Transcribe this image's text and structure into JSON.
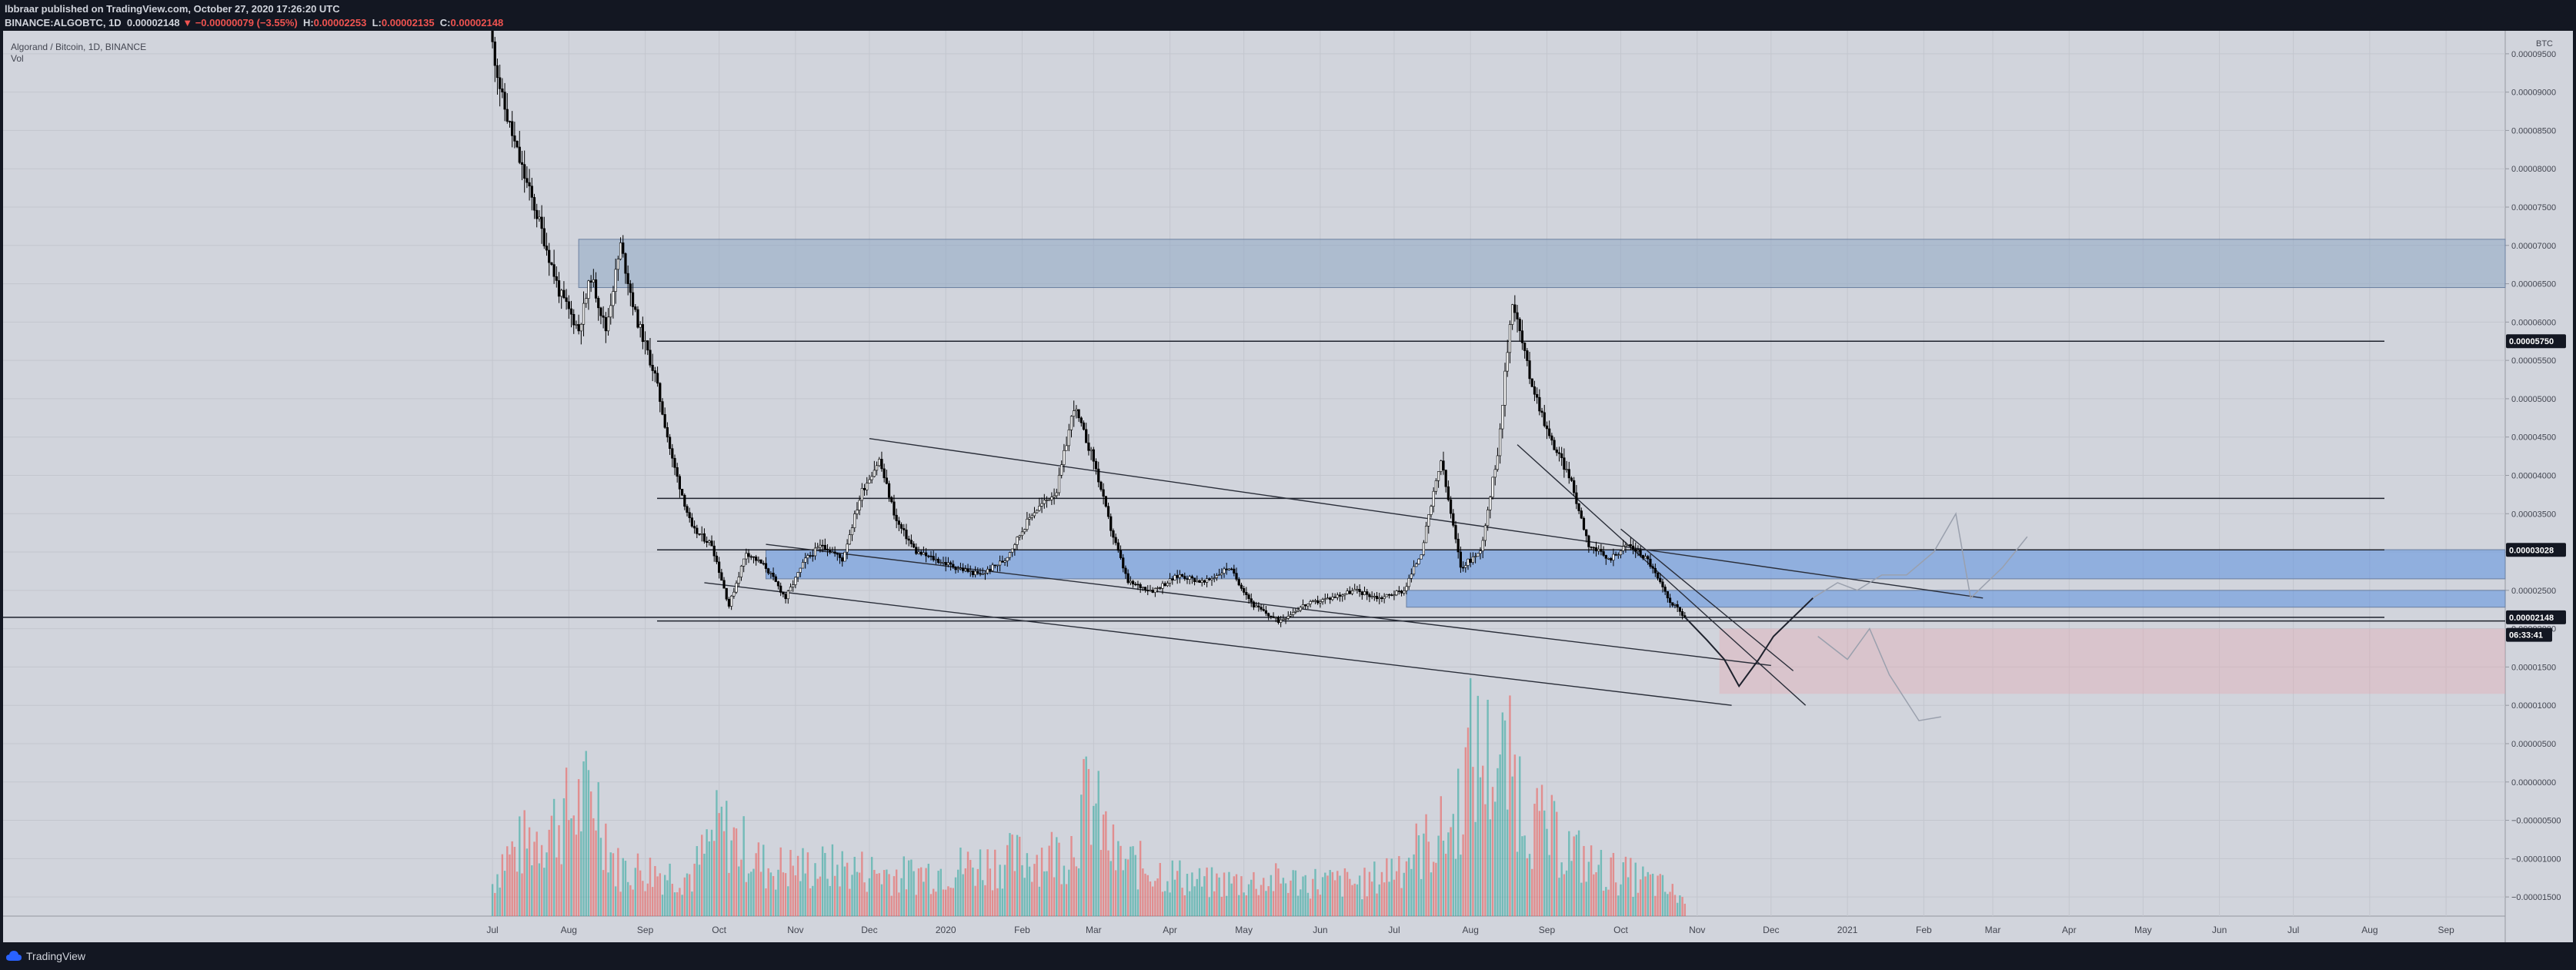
{
  "header": {
    "line1": "lbbraar published on TradingView.com, October 27, 2020 17:26:20 UTC",
    "symbol": "BINANCE:ALGOBTC, 1D",
    "last": "0.00002148",
    "change": "−0.00000079 (−3.55%)",
    "h_label": "H:",
    "h": "0.00002253",
    "l_label": "L:",
    "l": "0.00002135",
    "c_label": "C:",
    "c": "0.00002148"
  },
  "legend": {
    "title": "Algorand / Bitcoin, 1D, BINANCE",
    "vol": "Vol"
  },
  "footer": {
    "brand": "TradingView"
  },
  "colors": {
    "background": "#d1d4dc",
    "zone_blue": "#5b8fe0",
    "zone_grey_blue": "#8fa8c4",
    "zone_pink": "#e8a7b0",
    "vol_up": "#26a69a",
    "vol_down": "#ef5350"
  },
  "chart_data": {
    "type": "candlestick",
    "currency": "BTC",
    "x_ticks": [
      "Jul",
      "Aug",
      "Sep",
      "Oct",
      "Nov",
      "Dec",
      "2020",
      "Feb",
      "Mar",
      "Apr",
      "May",
      "Jun",
      "Jul",
      "Aug",
      "Sep",
      "Oct",
      "Nov",
      "Dec",
      "2021",
      "Feb",
      "Mar",
      "Apr",
      "May",
      "Jun",
      "Jul",
      "Aug",
      "Sep"
    ],
    "y_ticks": [
      "0.00009500",
      "0.00009000",
      "0.00008500",
      "0.00008000",
      "0.00007500",
      "0.00007000",
      "0.00006500",
      "0.00006000",
      "0.00005500",
      "0.00005000",
      "0.00004500",
      "0.00004000",
      "0.00003500",
      "0.00003000",
      "0.00002500",
      "0.00002000",
      "0.00001500",
      "0.00001000",
      "0.00000500",
      "0.00000000",
      "−0.00000500",
      "−0.00001000",
      "−0.00001500"
    ],
    "ylim": [
      -1.75e-05,
      9.8e-05
    ],
    "price_labels": [
      {
        "value": "0.00005750",
        "y": 5.75e-05
      },
      {
        "value": "0.00003028",
        "y": 3.028e-05
      },
      {
        "value": "0.00002148",
        "y": 2.148e-05
      },
      {
        "value": "06:33:41",
        "y": 1.92e-05
      }
    ],
    "horizontal_lines": [
      5.75e-05,
      3.7e-05,
      3.028e-05,
      2.148e-05,
      2.1e-05
    ],
    "zones": [
      {
        "kind": "grey",
        "from": "2019-08-05",
        "to": "end",
        "low": 6.45e-05,
        "high": 7.08e-05
      },
      {
        "kind": "blue",
        "from": "2019-10-20",
        "to": "end",
        "low": 2.65e-05,
        "high": 3.03e-05
      },
      {
        "kind": "blue",
        "from": "2020-07-06",
        "to": "end",
        "low": 2.28e-05,
        "high": 2.5e-05
      },
      {
        "kind": "pink",
        "from": "2020-11-10",
        "to": "end",
        "low": 1.15e-05,
        "high": 2e-05
      }
    ],
    "trend_lines": [
      {
        "from": [
          "2019-12-01",
          4.48e-05
        ],
        "to": [
          "2021-02-25",
          2.4e-05
        ]
      },
      {
        "from": [
          "2019-10-20",
          3.1e-05
        ],
        "to": [
          "2020-12-01",
          1.52e-05
        ]
      },
      {
        "from": [
          "2019-09-25",
          2.6e-05
        ],
        "to": [
          "2020-11-15",
          1e-05
        ]
      },
      {
        "from": [
          "2020-08-20",
          4.4e-05
        ],
        "to": [
          "2020-12-15",
          1e-05
        ]
      },
      {
        "from": [
          "2020-10-01",
          3.3e-05
        ],
        "to": [
          "2020-12-10",
          1.45e-05
        ]
      }
    ],
    "price_path": [
      [
        "2019-06-30",
        9.8e-05
      ],
      [
        "2019-07-05",
        8.9e-05
      ],
      [
        "2019-07-12",
        8.1e-05
      ],
      [
        "2019-07-20",
        7.3e-05
      ],
      [
        "2019-07-28",
        6.4e-05
      ],
      [
        "2019-08-05",
        5.9e-05
      ],
      [
        "2019-08-10",
        6.6e-05
      ],
      [
        "2019-08-16",
        5.9e-05
      ],
      [
        "2019-08-22",
        7e-05
      ],
      [
        "2019-08-28",
        6.1e-05
      ],
      [
        "2019-09-05",
        5.3e-05
      ],
      [
        "2019-09-12",
        4.2e-05
      ],
      [
        "2019-09-20",
        3.3e-05
      ],
      [
        "2019-09-28",
        3.1e-05
      ],
      [
        "2019-10-05",
        2.3e-05
      ],
      [
        "2019-10-12",
        3e-05
      ],
      [
        "2019-10-20",
        2.8e-05
      ],
      [
        "2019-10-28",
        2.4e-05
      ],
      [
        "2019-11-05",
        2.9e-05
      ],
      [
        "2019-11-12",
        3.1e-05
      ],
      [
        "2019-11-20",
        2.9e-05
      ],
      [
        "2019-11-28",
        3.8e-05
      ],
      [
        "2019-12-05",
        4.2e-05
      ],
      [
        "2019-12-12",
        3.4e-05
      ],
      [
        "2019-12-20",
        3e-05
      ],
      [
        "2019-12-28",
        2.9e-05
      ],
      [
        "2020-01-05",
        2.8e-05
      ],
      [
        "2020-01-15",
        2.7e-05
      ],
      [
        "2020-01-25",
        2.9e-05
      ],
      [
        "2020-02-05",
        3.5e-05
      ],
      [
        "2020-02-15",
        3.8e-05
      ],
      [
        "2020-02-22",
        4.9e-05
      ],
      [
        "2020-03-01",
        4.2e-05
      ],
      [
        "2020-03-08",
        3.3e-05
      ],
      [
        "2020-03-15",
        2.6e-05
      ],
      [
        "2020-03-25",
        2.5e-05
      ],
      [
        "2020-04-05",
        2.7e-05
      ],
      [
        "2020-04-15",
        2.6e-05
      ],
      [
        "2020-04-25",
        2.8e-05
      ],
      [
        "2020-05-05",
        2.3e-05
      ],
      [
        "2020-05-15",
        2.1e-05
      ],
      [
        "2020-05-25",
        2.3e-05
      ],
      [
        "2020-06-05",
        2.4e-05
      ],
      [
        "2020-06-15",
        2.5e-05
      ],
      [
        "2020-06-25",
        2.4e-05
      ],
      [
        "2020-07-05",
        2.5e-05
      ],
      [
        "2020-07-12",
        3e-05
      ],
      [
        "2020-07-20",
        4.2e-05
      ],
      [
        "2020-07-28",
        2.8e-05
      ],
      [
        "2020-08-05",
        3e-05
      ],
      [
        "2020-08-12",
        4.3e-05
      ],
      [
        "2020-08-18",
        6.3e-05
      ],
      [
        "2020-08-25",
        5.3e-05
      ],
      [
        "2020-09-02",
        4.5e-05
      ],
      [
        "2020-09-10",
        4e-05
      ],
      [
        "2020-09-18",
        3.1e-05
      ],
      [
        "2020-09-26",
        2.9e-05
      ],
      [
        "2020-10-04",
        3.1e-05
      ],
      [
        "2020-10-12",
        2.9e-05
      ],
      [
        "2020-10-20",
        2.4e-05
      ],
      [
        "2020-10-27",
        2.15e-05
      ]
    ],
    "projection_dark": [
      [
        "2020-10-27",
        2.15e-05
      ],
      [
        "2020-11-05",
        1.85e-05
      ],
      [
        "2020-11-12",
        1.6e-05
      ],
      [
        "2020-11-18",
        1.25e-05
      ],
      [
        "2020-11-26",
        1.6e-05
      ],
      [
        "2020-12-02",
        1.9e-05
      ],
      [
        "2020-12-10",
        2.15e-05
      ],
      [
        "2020-12-18",
        2.4e-05
      ]
    ],
    "projection_light": [
      [
        "2020-12-18",
        2.4e-05
      ],
      [
        "2020-12-28",
        2.6e-05
      ],
      [
        "2021-01-05",
        2.5e-05
      ],
      [
        "2021-01-15",
        2.7e-05
      ],
      [
        "2021-01-25",
        2.7e-05
      ],
      [
        "2021-02-05",
        3e-05
      ],
      [
        "2021-02-14",
        3.5e-05
      ],
      [
        "2021-02-20",
        2.4e-05
      ],
      [
        "2021-03-05",
        2.8e-05
      ],
      [
        "2021-03-15",
        3.2e-05
      ]
    ],
    "projection_light2": [
      [
        "2020-12-20",
        1.9e-05
      ],
      [
        "2021-01-01",
        1.6e-05
      ],
      [
        "2021-01-10",
        2e-05
      ],
      [
        "2021-01-18",
        1.4e-05
      ],
      [
        "2021-01-30",
        8e-06
      ],
      [
        "2021-02-08",
        8.5e-06
      ]
    ],
    "volume_path": [
      [
        "2019-07-01",
        0.2
      ],
      [
        "2019-07-05",
        0.35
      ],
      [
        "2019-08-12",
        0.75
      ],
      [
        "2019-08-20",
        0.3
      ],
      [
        "2019-09-20",
        0.25
      ],
      [
        "2019-10-01",
        0.55
      ],
      [
        "2019-10-20",
        0.3
      ],
      [
        "2019-11-20",
        0.3
      ],
      [
        "2019-12-15",
        0.25
      ],
      [
        "2020-02-20",
        0.4
      ],
      [
        "2020-02-28",
        0.75
      ],
      [
        "2020-03-10",
        0.35
      ],
      [
        "2020-04-15",
        0.2
      ],
      [
        "2020-05-15",
        0.22
      ],
      [
        "2020-06-20",
        0.2
      ],
      [
        "2020-07-25",
        0.55
      ],
      [
        "2020-08-01",
        1.0
      ],
      [
        "2020-08-18",
        0.9
      ],
      [
        "2020-08-25",
        0.6
      ],
      [
        "2020-09-20",
        0.3
      ],
      [
        "2020-10-15",
        0.2
      ],
      [
        "2020-10-27",
        0.1
      ]
    ]
  }
}
